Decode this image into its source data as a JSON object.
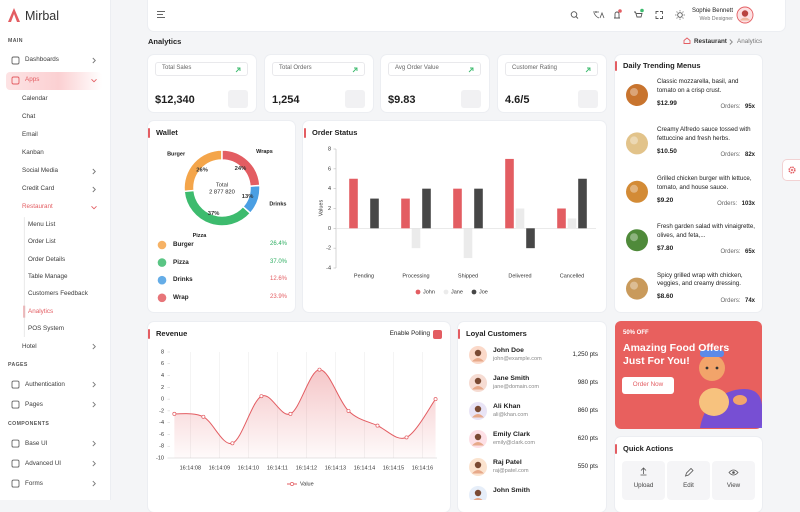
{
  "sidebar": {
    "brand": "Mirbal",
    "menu": [
      {
        "label": "MAIN",
        "kind": "heading"
      },
      {
        "label": "Dashboards",
        "kind": "item",
        "arrow": "right"
      },
      {
        "label": "Apps",
        "kind": "item",
        "arrow": "down",
        "state": "open"
      },
      {
        "label": "Calendar",
        "kind": "sub"
      },
      {
        "label": "Chat",
        "kind": "sub"
      },
      {
        "label": "Email",
        "kind": "sub"
      },
      {
        "label": "Kanban",
        "kind": "sub"
      },
      {
        "label": "Social Media",
        "kind": "sub",
        "arrow": "right"
      },
      {
        "label": "Credit Card",
        "kind": "sub",
        "arrow": "right"
      },
      {
        "label": "Restaurant",
        "kind": "sub",
        "arrow": "down",
        "state": "open"
      },
      {
        "label": "Menu List",
        "kind": "subsub"
      },
      {
        "label": "Order List",
        "kind": "subsub"
      },
      {
        "label": "Order Details",
        "kind": "subsub"
      },
      {
        "label": "Table Manage",
        "kind": "subsub"
      },
      {
        "label": "Customers Feedback",
        "kind": "subsub"
      },
      {
        "label": "Analytics",
        "kind": "subsub",
        "state": "active"
      },
      {
        "label": "POS System",
        "kind": "subsub"
      },
      {
        "label": "Hotel",
        "kind": "sub",
        "arrow": "right"
      },
      {
        "label": "PAGES",
        "kind": "heading"
      },
      {
        "label": "Authentication",
        "kind": "item",
        "arrow": "right"
      },
      {
        "label": "Pages",
        "kind": "item",
        "arrow": "right"
      },
      {
        "label": "COMPONENTS",
        "kind": "heading"
      },
      {
        "label": "Base UI",
        "kind": "item",
        "arrow": "right"
      },
      {
        "label": "Advanced UI",
        "kind": "item",
        "arrow": "right"
      },
      {
        "label": "Forms",
        "kind": "item",
        "arrow": "right"
      }
    ]
  },
  "topbar": {
    "user_name": "Sophie Bennett",
    "user_role": "Web Designer"
  },
  "page": {
    "title": "Analytics",
    "breadcrumb": [
      "Restaurant",
      "Analytics"
    ]
  },
  "stats": [
    {
      "label": "Total Sales",
      "value": "$12,340"
    },
    {
      "label": "Total Orders",
      "value": "1,254"
    },
    {
      "label": "Avg Order Value",
      "value": "$9.83"
    },
    {
      "label": "Customer Rating",
      "value": "4.6/5"
    }
  ],
  "trending": {
    "title": "Daily Trending Menus",
    "orders_label": "Orders:",
    "items": [
      {
        "description": "Classic mozzarella, basil, and tomato on a crisp crust.",
        "price": "$12.99",
        "orders": "95x",
        "color": "#c8742e"
      },
      {
        "description": "Creamy Alfredo sauce tossed with fettuccine and fresh herbs.",
        "price": "$10.50",
        "orders": "82x",
        "color": "#e2c38a"
      },
      {
        "description": "Grilled chicken burger with lettuce, tomato, and house sauce.",
        "price": "$9.20",
        "orders": "103x",
        "color": "#d38b36"
      },
      {
        "description": "Fresh garden salad with vinaigrette, olives, and feta,...",
        "price": "$7.80",
        "orders": "65x",
        "color": "#4f8a3a"
      },
      {
        "description": "Spicy grilled wrap with chicken, veggies, and creamy dressing.",
        "price": "$8.60",
        "orders": "74x",
        "color": "#c99a5b"
      }
    ]
  },
  "customers": {
    "title": "Loyal Customers",
    "items": [
      {
        "name": "John Doe",
        "email": "john@example.com",
        "points": "1,250 pts"
      },
      {
        "name": "Jane Smith",
        "email": "jane@domain.com",
        "points": "980 pts"
      },
      {
        "name": "Ali Khan",
        "email": "ali@khan.com",
        "points": "860 pts"
      },
      {
        "name": "Emily Clark",
        "email": "emily@clark.com",
        "points": "620 pts"
      },
      {
        "name": "Raj Patel",
        "email": "raj@patel.com",
        "points": "550 pts"
      },
      {
        "name": "John Smith"
      }
    ]
  },
  "promo": {
    "badge": "50% OFF",
    "headline": "Amazing Food Offers Just For You!",
    "button": "Order Now"
  },
  "quick_actions": {
    "title": "Quick Actions",
    "actions": [
      "Upload",
      "Edit",
      "View"
    ]
  },
  "chart_data": [
    {
      "type": "donut",
      "title": "Wallet",
      "categories": [
        "Burger",
        "Pizza",
        "Drinks",
        "Wrap"
      ],
      "values": [
        26.4,
        37.0,
        12.6,
        23.9
      ],
      "value_labels": [
        "26.4%",
        "37.0%",
        "12.6%",
        "23.9%"
      ],
      "arc_labels": [
        "26%",
        "37%",
        "13%",
        "24%"
      ],
      "slice_labels": [
        "Burger",
        "Pizza",
        "Drinks",
        "Wraps"
      ],
      "colors": [
        "#f4a54a",
        "#3dbb6e",
        "#4a9fe3",
        "#e35d62"
      ],
      "label_colors": [
        "#2fae62",
        "#2fae62",
        "#e35d62",
        "#e35d62"
      ],
      "center_label": "Total",
      "center_value": "2 877 820"
    },
    {
      "type": "bar",
      "title": "Order Status",
      "y_label": "Values",
      "categories": [
        "Pending",
        "Processing",
        "Shipped",
        "Delivered",
        "Cancelled"
      ],
      "series": [
        {
          "name": "John",
          "color": "#e35d62",
          "values": [
            5,
            3,
            4,
            7,
            2
          ]
        },
        {
          "name": "Jane",
          "color": "#ebebeb",
          "values": [
            0,
            -2,
            -3,
            2,
            1
          ]
        },
        {
          "name": "Joe",
          "color": "#474747",
          "values": [
            3,
            4,
            4,
            -2,
            5
          ]
        }
      ],
      "ylim": [
        -4,
        8
      ],
      "yticks": [
        -4,
        -2,
        0,
        2,
        4,
        6,
        8
      ],
      "grid": false,
      "legend": "bottom"
    },
    {
      "type": "line",
      "title": "Revenue",
      "toggle_label": "Enable Polling",
      "toggle_on": true,
      "x": [
        7.45,
        8.45,
        9.45,
        10.45,
        11.45,
        12.45,
        13.45,
        14.45,
        15.45,
        16.45
      ],
      "series": [
        {
          "name": "Value",
          "color": "#e35d62",
          "values": [
            -2.5,
            -3,
            -7.5,
            0.5,
            -2.5,
            5,
            -2,
            -4.5,
            -6.5,
            0
          ]
        }
      ],
      "xlim": [
        7.3,
        16.5
      ],
      "xticks": [
        {
          "value": 8,
          "label": "16:14:08"
        },
        {
          "value": 9,
          "label": "16:14:09"
        },
        {
          "value": 10,
          "label": "16:14:10"
        },
        {
          "value": 11,
          "label": "16:14:11"
        },
        {
          "value": 12,
          "label": "16:14:12"
        },
        {
          "value": 13,
          "label": "16:14:13"
        },
        {
          "value": 14,
          "label": "16:14:14"
        },
        {
          "value": 15,
          "label": "16:14:15"
        },
        {
          "value": 16,
          "label": "16:14:16"
        }
      ],
      "ylim": [
        -10,
        8
      ],
      "yticks": [
        8,
        6,
        4,
        2,
        0,
        -2,
        -4,
        -6,
        -8,
        -10
      ],
      "grid": "x",
      "area": true,
      "smooth": true,
      "legend": "bottom"
    }
  ]
}
